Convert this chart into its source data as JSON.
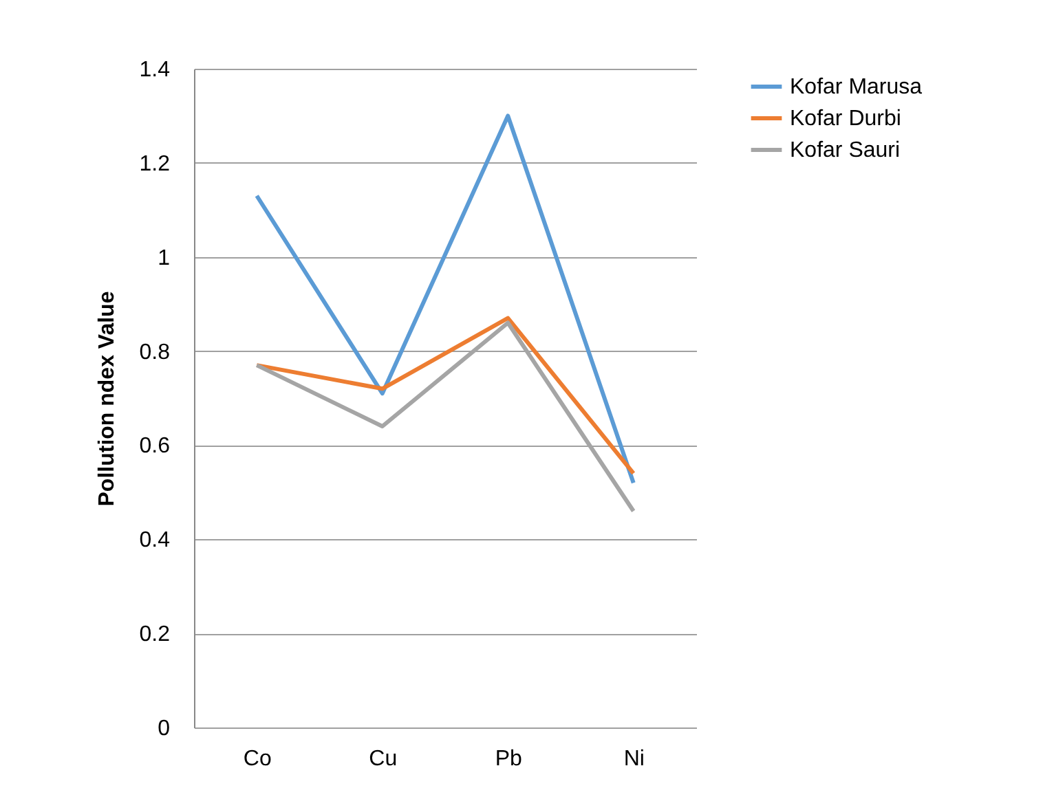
{
  "chart_data": {
    "type": "line",
    "ylabel": "Pollution ndex Value",
    "categories": [
      "Co",
      "Cu",
      "Pb",
      "Ni"
    ],
    "series": [
      {
        "name": "Kofar Marusa",
        "color": "#5b9bd5",
        "values": [
          1.13,
          0.71,
          1.3,
          0.52
        ]
      },
      {
        "name": "Kofar Durbi",
        "color": "#ed7d31",
        "values": [
          0.77,
          0.72,
          0.87,
          0.54
        ]
      },
      {
        "name": "Kofar Sauri",
        "color": "#a5a5a5",
        "values": [
          0.77,
          0.64,
          0.86,
          0.46
        ]
      }
    ],
    "ylim": [
      0,
      1.4
    ],
    "yticks": [
      0,
      0.2,
      0.4,
      0.6,
      0.8,
      1,
      1.2,
      1.4
    ],
    "grid": "y",
    "legend": "right",
    "marker": "none",
    "line_style": "solid"
  }
}
